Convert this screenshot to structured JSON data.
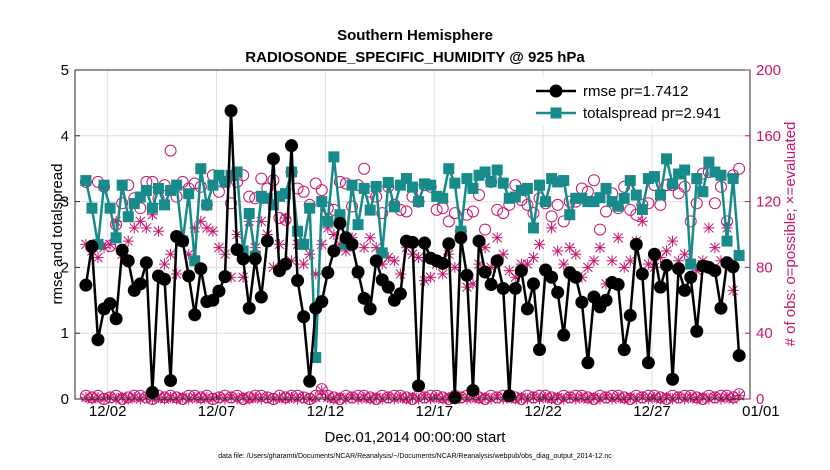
{
  "chart_data": {
    "type": "line",
    "title": "Southern Hemisphere",
    "subtitle": "RADIOSONDE_SPECIFIC_HUMIDITY @ 925 hPa",
    "xlabel": "Dec.01,2014 00:00:00 start",
    "ylabel": "rmse and totalspread",
    "ylabel_right": "# of obs: o=possible; ×=evaluated",
    "footer": "data file: /Users/gharamti/Documents/NCAR/Reanalysis/~/Documents/NCAR/Reanalysis/webpub/obs_diag_output_2014-12.nc",
    "xlim": [
      0.5,
      31.5
    ],
    "ylim": [
      0,
      5
    ],
    "ylim_right": [
      0,
      200
    ],
    "x_ticks": [
      2,
      7,
      12,
      17,
      22,
      27,
      32
    ],
    "x_tick_labels": [
      "12/02",
      "12/07",
      "12/12",
      "12/17",
      "12/22",
      "12/27",
      "01/01"
    ],
    "y_ticks": [
      "0",
      "1",
      "2",
      "3",
      "4",
      "5"
    ],
    "y_ticks_right": [
      "0",
      "40",
      "80",
      "120",
      "160",
      "200"
    ],
    "legend_position": "top-right",
    "colors": {
      "rmse": "#000000",
      "spread": "#178a8a",
      "obs": "#c8146e"
    },
    "series": [
      {
        "name": "rmse pr=1.7412",
        "key": "rmse",
        "values": [
          1.73,
          2.32,
          0.9,
          1.37,
          1.45,
          1.22,
          2.26,
          2.1,
          1.65,
          1.75,
          2.07,
          0.1,
          1.87,
          1.82,
          0.28,
          2.47,
          2.4,
          1.87,
          1.28,
          1.98,
          1.48,
          1.5,
          1.64,
          1.86,
          4.38,
          2.27,
          2.13,
          1.38,
          2.13,
          1.55,
          2.4,
          3.65,
          1.95,
          2.05,
          3.85,
          1.8,
          1.25,
          0.27,
          1.38,
          1.48,
          1.92,
          2.25,
          2.67,
          2.45,
          2.35,
          1.93,
          1.53,
          1.37,
          2.1,
          1.81,
          1.7,
          1.5,
          1.6,
          2.4,
          2.38,
          0.2,
          2.37,
          2.14,
          2.1,
          2.06,
          2.36,
          0.02,
          2.45,
          1.88,
          0.13,
          2.4,
          1.93,
          1.74,
          2.1,
          1.68,
          0.05,
          1.68,
          1.95,
          1.37,
          1.75,
          0.75,
          1.96,
          1.85,
          1.62,
          0.97,
          1.92,
          1.85,
          1.47,
          0.55,
          1.55,
          1.4,
          1.5,
          1.77,
          1.74,
          0.75,
          1.27,
          2.35,
          1.9,
          0.55,
          2.2,
          1.7,
          2.03,
          0.3,
          1.98,
          1.65,
          1.85,
          1.03,
          2.02,
          2.0,
          1.95,
          1.38,
          2.07,
          2.01,
          0.66
        ]
      },
      {
        "name": "totalspread pr=2.941",
        "key": "spread",
        "values": [
          3.32,
          2.9,
          2.35,
          3.25,
          2.9,
          2.45,
          3.25,
          2.77,
          2.97,
          3.07,
          3.17,
          2.9,
          3.2,
          2.95,
          3.17,
          3.25,
          2.4,
          3.12,
          2.1,
          3.5,
          2.95,
          3.25,
          3.4,
          3.3,
          3.4,
          3.45,
          2.25,
          2.82,
          2.17,
          3.08,
          3.05,
          2.95,
          3.08,
          3.12,
          3.45,
          2.55,
          2.35,
          2.9,
          0.63,
          3.0,
          2.7,
          3.68,
          2.8,
          2.35,
          3.25,
          2.65,
          3.2,
          2.87,
          3.23,
          2.22,
          3.29,
          2.92,
          3.25,
          3.35,
          3.22,
          3.0,
          3.27,
          3.25,
          3.08,
          3.05,
          3.5,
          3.28,
          2.55,
          3.35,
          3.2,
          3.4,
          3.45,
          3.3,
          3.48,
          3.28,
          3.05,
          3.07,
          3.17,
          3.2,
          2.6,
          3.25,
          3.0,
          3.35,
          3.3,
          3.32,
          2.8,
          3.05,
          3.05,
          3.0,
          3.0,
          3.06,
          3.2,
          3.0,
          2.93,
          3.05,
          3.32,
          3.1,
          2.88,
          3.35,
          3.38,
          3.1,
          3.65,
          3.27,
          3.42,
          3.48,
          2.05,
          3.35,
          3.15,
          3.6,
          3.45,
          3.4,
          2.4,
          3.35,
          2.18
        ]
      },
      {
        "name": "obs possible",
        "key": "possible",
        "marker": "circle",
        "axis": "right",
        "values": [
          132,
          92,
          132,
          129,
          93,
          106,
          119,
          130,
          122,
          116,
          132,
          132,
          122,
          130,
          151,
          123,
          132,
          128,
          131,
          129,
          118,
          136,
          126,
          132,
          119,
          132,
          136,
          123,
          122,
          134,
          128,
          133,
          110,
          109,
          138,
          128,
          126,
          118,
          131,
          127,
          116,
          115,
          132,
          131,
          117,
          130,
          140,
          126,
          123,
          113,
          129,
          118,
          115,
          114,
          123,
          120,
          130,
          129,
          115,
          116,
          108,
          113,
          102,
          112,
          114,
          124,
          103,
          132,
          115,
          113,
          118,
          130,
          121,
          118,
          113,
          122,
          119,
          111,
          118,
          108,
          120,
          120,
          128,
          126,
          133,
          103,
          114,
          125,
          116,
          129,
          115,
          112,
          118,
          119,
          130,
          118,
          130,
          130,
          125,
          129,
          108,
          119,
          137,
          138,
          119,
          129,
          108,
          136,
          140
        ]
      },
      {
        "name": "obs evaluated",
        "key": "evaluated",
        "marker": "times",
        "axis": "right",
        "values": [
          94,
          90,
          86,
          92,
          94,
          108,
          88,
          96,
          104,
          108,
          104,
          112,
          102,
          82,
          88,
          76,
          96,
          88,
          104,
          108,
          104,
          102,
          92,
          88,
          74,
          100,
          74,
          108,
          92,
          108,
          100,
          80,
          94,
          110,
          84,
          94,
          82,
          88,
          76,
          94,
          104,
          100,
          94,
          90,
          98,
          76,
          92,
          98,
          92,
          82,
          86,
          84,
          76,
          92,
          88,
          86,
          72,
          74,
          82,
          76,
          88,
          80,
          100,
          68,
          70,
          82,
          92,
          80,
          98,
          88,
          78,
          74,
          82,
          82,
          86,
          94,
          78,
          104,
          90,
          82,
          92,
          88,
          74,
          80,
          84,
          92,
          70,
          84,
          98,
          80,
          84,
          96,
          108,
          82,
          80,
          86,
          90,
          96,
          84,
          88,
          82,
          78,
          84,
          104,
          92,
          84,
          104,
          66,
          88
        ]
      },
      {
        "name": "obs possible (bottom)",
        "key": "possible_bottom",
        "marker": "circle",
        "axis": "right",
        "values": [
          2,
          1,
          2,
          0,
          1,
          2,
          0,
          1,
          2,
          2,
          1,
          0,
          2,
          1,
          2,
          1,
          0,
          2,
          2,
          1,
          2,
          0,
          1,
          2,
          1,
          2,
          0,
          1,
          2,
          2,
          1,
          0,
          2,
          1,
          2,
          2,
          1,
          0,
          2,
          6,
          2,
          1,
          0,
          2,
          1,
          2,
          2,
          1,
          0,
          2,
          1,
          2,
          2,
          1,
          0,
          2,
          1,
          2,
          2,
          1,
          0,
          2,
          1,
          2,
          2,
          1,
          0,
          2,
          1,
          2,
          2,
          1,
          0,
          2,
          1,
          2,
          2,
          1,
          0,
          2,
          1,
          2,
          2,
          1,
          0,
          2,
          1,
          2,
          2,
          1,
          0,
          2,
          1,
          2,
          2,
          1,
          0,
          2,
          1,
          2,
          2,
          1,
          0,
          2,
          1,
          2,
          2,
          1,
          3
        ]
      },
      {
        "name": "obs evaluated (bottom)",
        "key": "evaluated_bottom",
        "marker": "times",
        "axis": "right",
        "values": [
          1,
          0,
          1,
          0,
          1,
          0,
          1,
          0,
          1,
          0,
          1,
          0,
          1,
          0,
          1,
          0,
          1,
          0,
          1,
          0,
          1,
          0,
          1,
          0,
          1,
          0,
          1,
          0,
          1,
          0,
          1,
          0,
          1,
          0,
          1,
          0,
          1,
          0,
          1,
          5,
          1,
          0,
          1,
          0,
          1,
          0,
          1,
          0,
          1,
          0,
          1,
          0,
          1,
          0,
          1,
          0,
          1,
          0,
          1,
          0,
          1,
          0,
          1,
          0,
          1,
          0,
          1,
          0,
          1,
          0,
          1,
          0,
          1,
          0,
          1,
          0,
          1,
          0,
          1,
          0,
          1,
          0,
          1,
          0,
          1,
          0,
          1,
          0,
          1,
          0,
          1,
          0,
          1,
          0,
          1,
          0,
          1,
          0,
          1,
          0,
          1,
          0,
          1,
          0,
          1,
          0,
          1,
          0,
          2
        ]
      }
    ]
  }
}
